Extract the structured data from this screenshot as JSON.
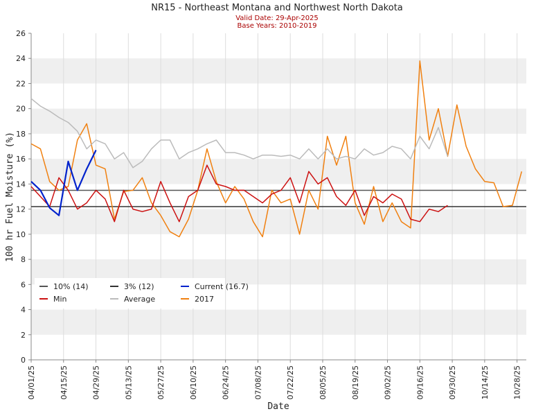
{
  "chart_data": {
    "type": "line",
    "title": "NR15 - Northeast Montana and Northwest North Dakota",
    "subtitle": [
      "Valid Date: 29-Apr-2025",
      "Base Years: 2010-2019"
    ],
    "x_label": "Date",
    "y_label": "100 hr Fuel Moisture (%)",
    "xlim": [
      "2025-04-01",
      "2025-11-01"
    ],
    "ylim": [
      0,
      26
    ],
    "yticks": [
      0,
      2,
      4,
      6,
      8,
      10,
      12,
      14,
      16,
      18,
      20,
      22,
      24,
      26
    ],
    "xticks": [
      {
        "value": "2025-04-01",
        "label": "04/01/25"
      },
      {
        "value": "2025-04-15",
        "label": "04/15/25"
      },
      {
        "value": "2025-04-29",
        "label": "04/29/25"
      },
      {
        "value": "2025-05-13",
        "label": "05/13/25"
      },
      {
        "value": "2025-05-27",
        "label": "05/27/25"
      },
      {
        "value": "2025-06-10",
        "label": "06/10/25"
      },
      {
        "value": "2025-06-24",
        "label": "06/24/25"
      },
      {
        "value": "2025-07-08",
        "label": "07/08/25"
      },
      {
        "value": "2025-07-22",
        "label": "07/22/25"
      },
      {
        "value": "2025-08-05",
        "label": "08/05/25"
      },
      {
        "value": "2025-08-19",
        "label": "08/19/25"
      },
      {
        "value": "2025-09-02",
        "label": "09/02/25"
      },
      {
        "value": "2025-09-16",
        "label": "09/16/25"
      },
      {
        "value": "2025-09-30",
        "label": "09/30/25"
      },
      {
        "value": "2025-10-14",
        "label": "10/14/25"
      },
      {
        "value": "2025-10-28",
        "label": "10/28/25"
      }
    ],
    "grid": true,
    "banded": true,
    "x": [
      "2025-04-01",
      "2025-04-05",
      "2025-04-09",
      "2025-04-13",
      "2025-04-17",
      "2025-04-21",
      "2025-04-25",
      "2025-04-29",
      "2025-05-03",
      "2025-05-07",
      "2025-05-11",
      "2025-05-15",
      "2025-05-19",
      "2025-05-23",
      "2025-05-27",
      "2025-05-31",
      "2025-06-04",
      "2025-06-08",
      "2025-06-12",
      "2025-06-16",
      "2025-06-20",
      "2025-06-24",
      "2025-06-28",
      "2025-07-02",
      "2025-07-06",
      "2025-07-10",
      "2025-07-14",
      "2025-07-18",
      "2025-07-22",
      "2025-07-26",
      "2025-07-30",
      "2025-08-03",
      "2025-08-07",
      "2025-08-11",
      "2025-08-15",
      "2025-08-19",
      "2025-08-23",
      "2025-08-27",
      "2025-08-31",
      "2025-09-04",
      "2025-09-08",
      "2025-09-12",
      "2025-09-16",
      "2025-09-20",
      "2025-09-24",
      "2025-09-28",
      "2025-10-02",
      "2025-10-06",
      "2025-10-10",
      "2025-10-14",
      "2025-10-18",
      "2025-10-22",
      "2025-10-26",
      "2025-10-30"
    ],
    "reference_lines": [
      {
        "name": "10% (14)",
        "color": "#555555",
        "value": 13.5
      },
      {
        "name": "3% (12)",
        "color": "#333333",
        "value": 12.2
      }
    ],
    "series": [
      {
        "name": "Current (16.7)",
        "color": "#0022cc",
        "width": 2.2,
        "values": [
          14.2,
          13.5,
          12.1,
          11.5,
          15.8,
          13.5,
          15.2,
          16.7,
          null,
          null,
          null,
          null,
          null,
          null,
          null,
          null,
          null,
          null,
          null,
          null,
          null,
          null,
          null,
          null,
          null,
          null,
          null,
          null,
          null,
          null,
          null,
          null,
          null,
          null,
          null,
          null,
          null,
          null,
          null,
          null,
          null,
          null,
          null,
          null,
          null,
          null,
          null,
          null,
          null,
          null,
          null,
          null,
          null,
          null
        ]
      },
      {
        "name": "Min",
        "color": "#cc1111",
        "width": 1.5,
        "values": [
          13.8,
          13,
          12.2,
          14.5,
          13.5,
          12,
          12.5,
          13.5,
          12.8,
          11,
          13.5,
          12,
          11.8,
          12,
          14.2,
          12.5,
          11,
          13,
          13.5,
          15.5,
          14,
          13.8,
          13.5,
          13.5,
          13,
          12.5,
          13.2,
          13.5,
          14.5,
          12.5,
          15,
          14,
          14.5,
          13,
          12.3,
          13.5,
          11.5,
          13,
          12.5,
          13.2,
          12.8,
          11.2,
          11,
          12,
          11.8,
          12.3,
          null,
          null,
          null,
          null,
          null,
          null,
          null,
          null
        ]
      },
      {
        "name": "Average",
        "color": "#bbbbbb",
        "width": 1.5,
        "values": [
          20.8,
          20.2,
          19.8,
          19.3,
          18.9,
          18.2,
          16.8,
          17.5,
          17.2,
          16,
          16.5,
          15.3,
          15.8,
          16.8,
          17.5,
          17.5,
          16,
          16.5,
          16.8,
          17.2,
          17.5,
          16.5,
          16.5,
          16.3,
          16,
          16.3,
          16.3,
          16.2,
          16.3,
          16,
          16.8,
          16,
          16.8,
          16,
          16.2,
          16,
          16.8,
          16.3,
          16.5,
          17,
          16.8,
          16,
          17.8,
          16.8,
          18.5,
          16.2,
          null,
          null,
          null,
          null,
          null,
          null,
          null,
          null
        ]
      },
      {
        "name": "2017",
        "color": "#f08010",
        "width": 1.5,
        "values": [
          17.2,
          16.8,
          14.2,
          13.5,
          13.8,
          17.5,
          18.8,
          15.5,
          15.2,
          11.2,
          13.4,
          13.5,
          14.5,
          12.5,
          11.5,
          10.2,
          9.8,
          11.2,
          13.5,
          16.8,
          14.2,
          12.5,
          13.8,
          12.8,
          11,
          9.8,
          13.5,
          12.5,
          12.8,
          10,
          13.5,
          12,
          17.8,
          15.5,
          17.8,
          12.5,
          10.8,
          13.8,
          11,
          12.5,
          11,
          10.5,
          23.8,
          17.5,
          20,
          16.2,
          20.3,
          17,
          15.2,
          14.2,
          14.1,
          12.2,
          12.3,
          15
        ]
      }
    ]
  }
}
